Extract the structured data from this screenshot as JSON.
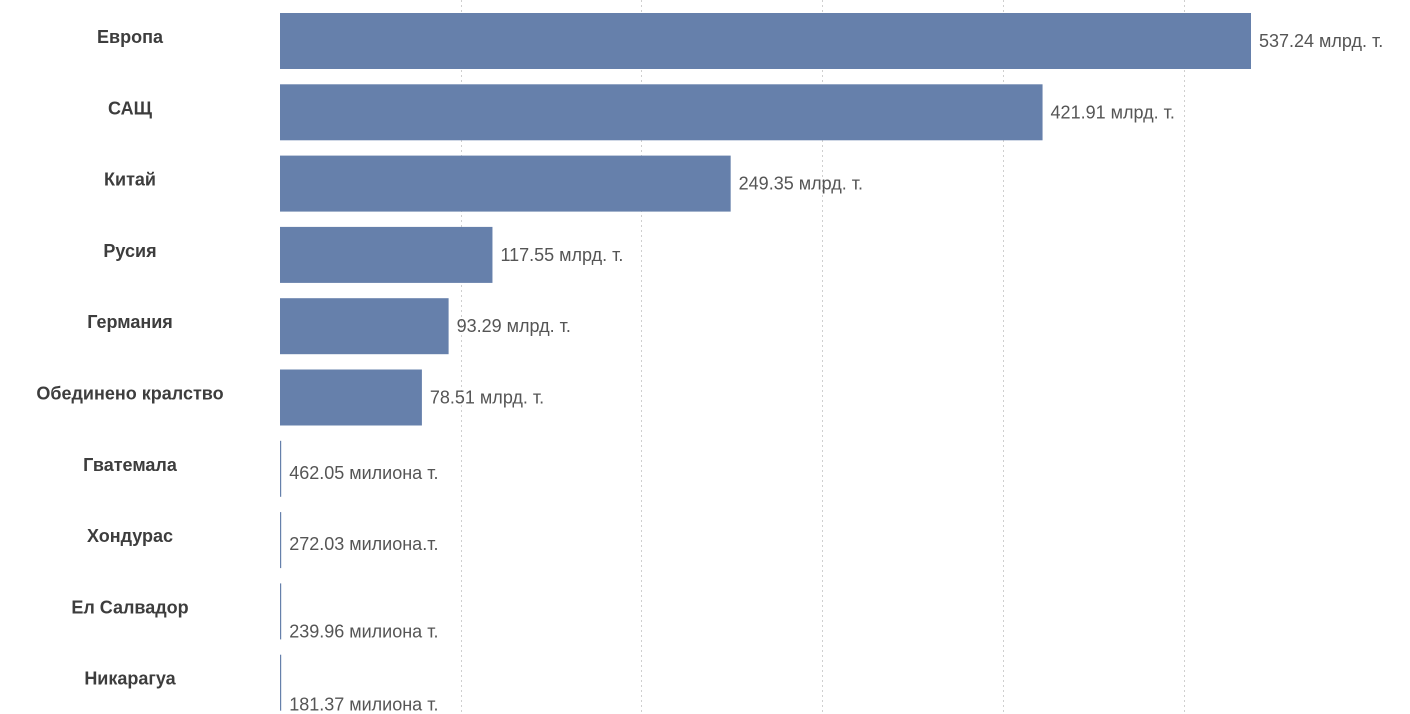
{
  "chart_data": {
    "type": "bar",
    "orientation": "horizontal",
    "categories": [
      "Европа",
      "САЩ",
      "Китай",
      "Русия",
      "Германия",
      "Обединено кралство",
      "Гватемала",
      "Хондурас",
      "Ел Салвадор",
      "Никарагуа"
    ],
    "values": [
      537.24,
      421.91,
      249.35,
      117.55,
      93.29,
      78.51,
      0.46205,
      0.27203,
      0.23996,
      0.18137
    ],
    "value_labels": [
      "537.24 млрд. т.",
      "421.91 млрд. т.",
      "249.35 млрд. т.",
      "117.55 млрд. т.",
      "93.29 млрд. т.",
      "78.51 млрд. т.",
      "462.05 милиона т.",
      "272.03 милиона.т.",
      "239.96 милиона т.",
      "181.37 милиона т."
    ],
    "unit": "млрд. т.",
    "xlim": [
      0,
      560
    ],
    "grid": true,
    "bar_color": "#6680ab"
  }
}
